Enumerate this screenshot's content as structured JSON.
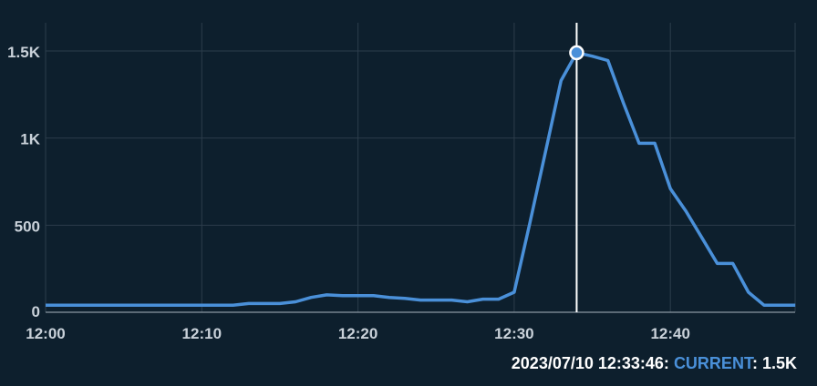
{
  "chart_data": {
    "type": "line",
    "x_ticks": [
      "12:00",
      "12:10",
      "12:20",
      "12:30",
      "12:40"
    ],
    "y_ticks": [
      "0",
      "500",
      "1K",
      "1.5K"
    ],
    "ylim": [
      0,
      1500
    ],
    "xlim_minutes": [
      0,
      48
    ],
    "grid": true,
    "line_color": "#4a90d9",
    "series": [
      {
        "name": "CURRENT",
        "x": [
          "12:00",
          "12:01",
          "12:02",
          "12:03",
          "12:04",
          "12:05",
          "12:06",
          "12:07",
          "12:08",
          "12:09",
          "12:10",
          "12:11",
          "12:12",
          "12:13",
          "12:14",
          "12:15",
          "12:16",
          "12:17",
          "12:18",
          "12:19",
          "12:20",
          "12:21",
          "12:22",
          "12:23",
          "12:24",
          "12:25",
          "12:26",
          "12:27",
          "12:28",
          "12:29",
          "12:30",
          "12:31",
          "12:32",
          "12:33",
          "12:34",
          "12:35",
          "12:36",
          "12:37",
          "12:38",
          "12:39",
          "12:40",
          "12:41",
          "12:42",
          "12:43",
          "12:44",
          "12:45",
          "12:46",
          "12:47",
          "12:48"
        ],
        "values": [
          40,
          40,
          40,
          40,
          40,
          40,
          40,
          40,
          40,
          40,
          40,
          40,
          40,
          50,
          50,
          50,
          60,
          85,
          100,
          95,
          95,
          95,
          85,
          80,
          70,
          70,
          70,
          60,
          75,
          75,
          115,
          510,
          920,
          1330,
          1490,
          1470,
          1445,
          1200,
          970,
          970,
          710,
          580,
          430,
          280,
          280,
          115,
          40,
          40,
          40
        ]
      }
    ],
    "cursor": {
      "x": "12:34",
      "value": 1490
    }
  },
  "footer": {
    "timestamp": "2023/07/10 12:33:46:",
    "series_label": "CURRENT",
    "separator": ":",
    "value": "1.5K"
  }
}
